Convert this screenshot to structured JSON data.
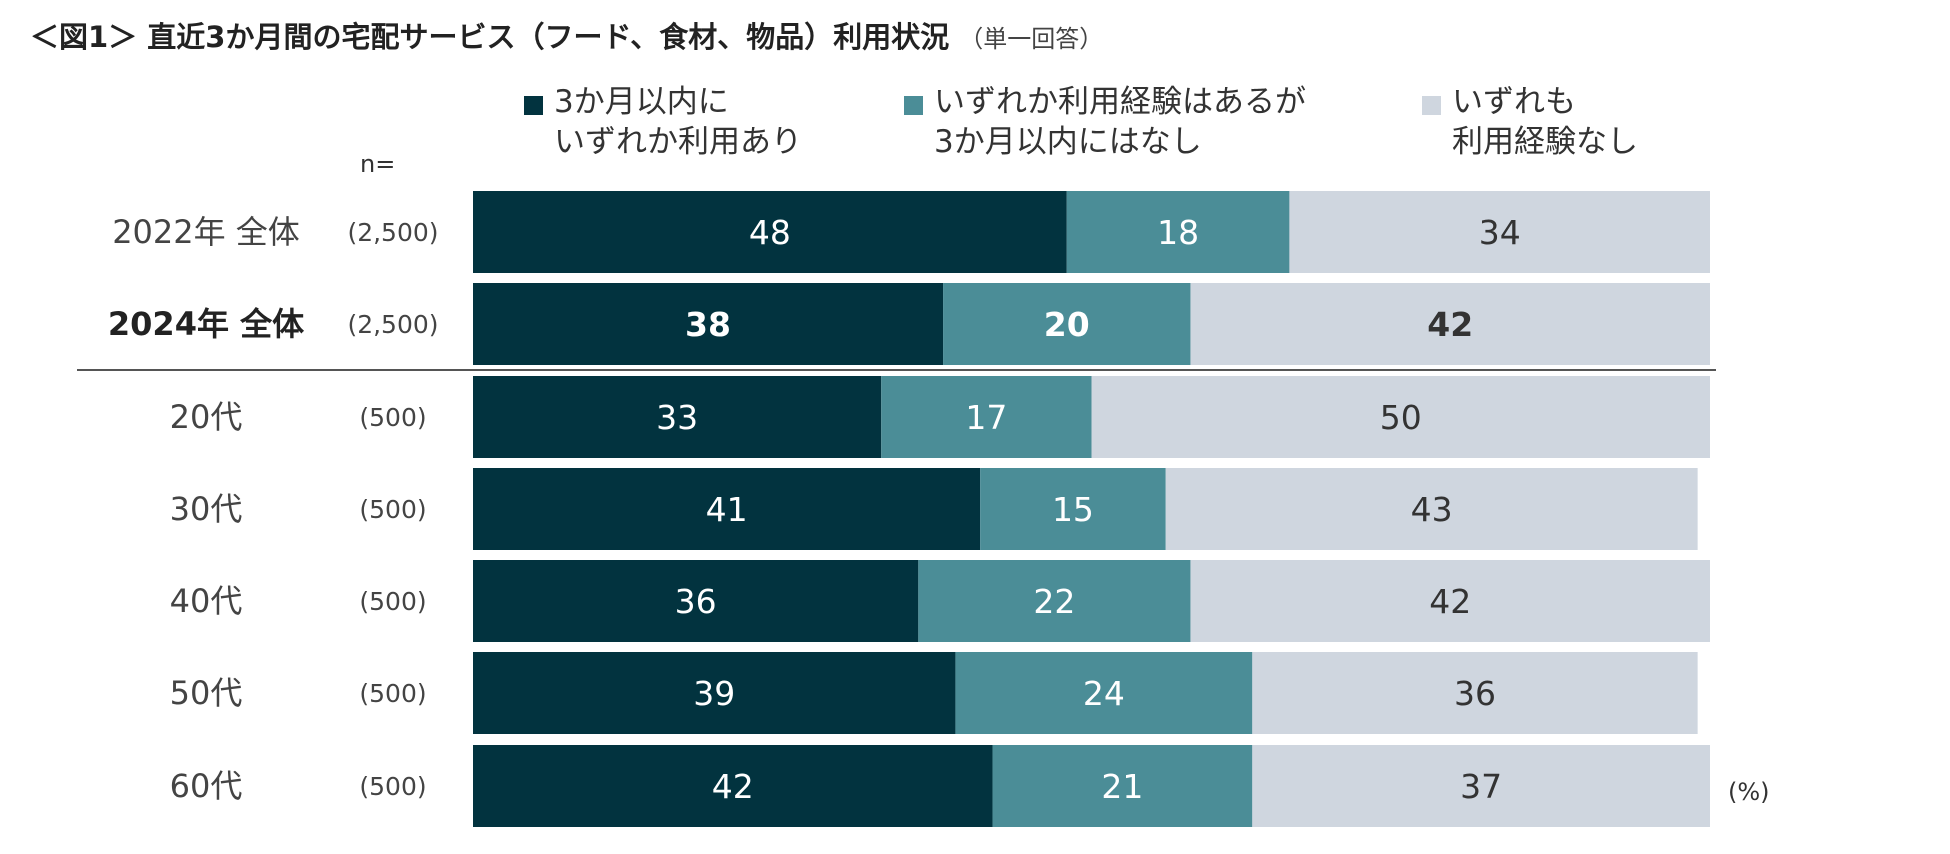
{
  "title": "＜図1＞ 直近3か月間の宅配サービス（フード、食材、物品）利用状況",
  "title_note": "（単一回答）",
  "n_label": "n=",
  "percent_label": "(%)",
  "colors": {
    "series1": "#02333f",
    "series2": "#4b8d97",
    "series3": "#cfd6df",
    "text_dark": "#333333",
    "text_light": "#ffffff",
    "divider": "#555555"
  },
  "legend": [
    {
      "line1": "3か月以内に",
      "line2": "いずれか利用あり"
    },
    {
      "line1": "いずれか利用経験はあるが",
      "line2": "3か月以内にはなし"
    },
    {
      "line1": "いずれも",
      "line2": "利用経験なし"
    }
  ],
  "chart_data": {
    "type": "bar",
    "orientation": "horizontal",
    "stacked": true,
    "unit": "%",
    "xlim": [
      0,
      100
    ],
    "categories": [
      "2022年 全体",
      "2024年 全体",
      "20代",
      "30代",
      "40代",
      "50代",
      "60代"
    ],
    "n_values": [
      "(2,500)",
      "(2,500)",
      "(500)",
      "(500)",
      "(500)",
      "(500)",
      "(500)"
    ],
    "bold_category": "2024年 全体",
    "series": [
      {
        "name": "3か月以内にいずれか利用あり",
        "values": [
          48,
          38,
          33,
          41,
          36,
          39,
          42
        ]
      },
      {
        "name": "いずれか利用経験はあるが3か月以内にはなし",
        "values": [
          18,
          20,
          17,
          15,
          22,
          24,
          21
        ]
      },
      {
        "name": "いずれも利用経験なし",
        "values": [
          34,
          42,
          50,
          43,
          42,
          36,
          37
        ]
      }
    ]
  }
}
